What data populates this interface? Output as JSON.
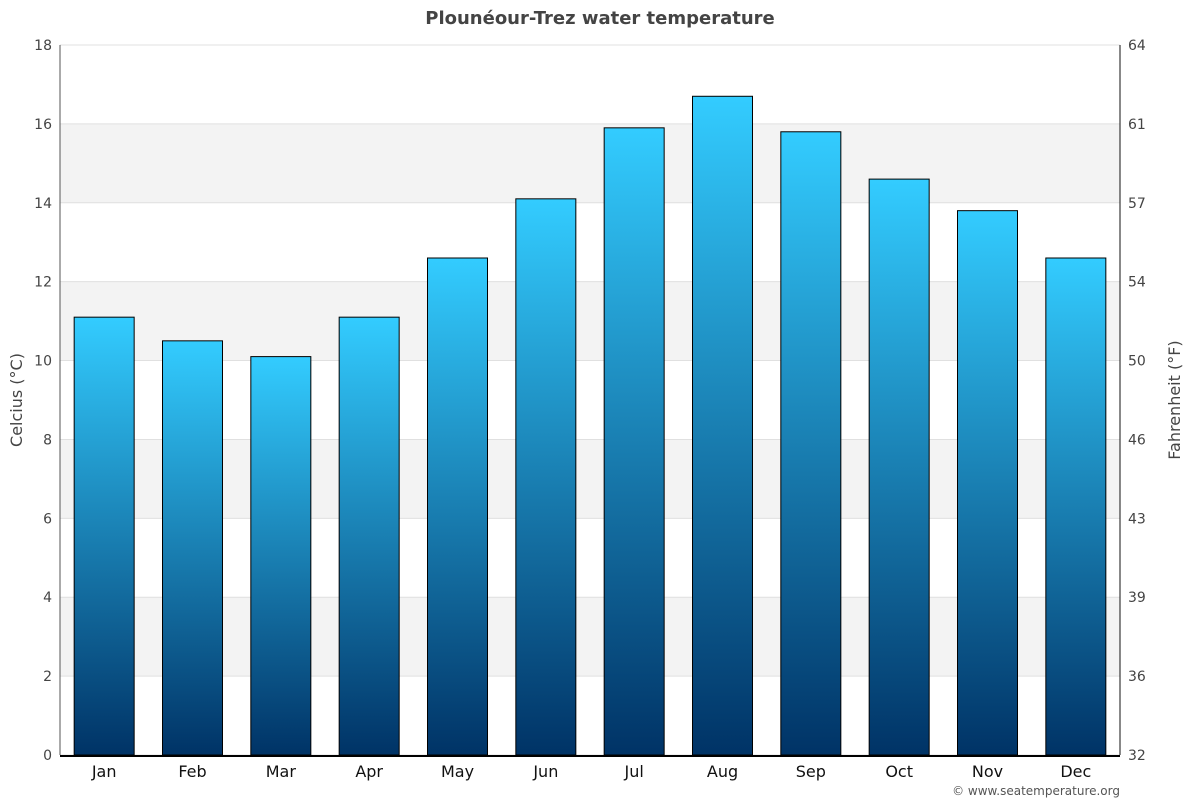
{
  "chart_data": {
    "type": "bar",
    "title": "Plounéour-Trez water temperature",
    "categories": [
      "Jan",
      "Feb",
      "Mar",
      "Apr",
      "May",
      "Jun",
      "Jul",
      "Aug",
      "Sep",
      "Oct",
      "Nov",
      "Dec"
    ],
    "values": [
      11.1,
      10.5,
      10.1,
      11.1,
      12.6,
      14.1,
      15.9,
      16.7,
      15.8,
      14.6,
      13.8,
      12.6
    ],
    "ylabel": "Celcius (°C)",
    "y2label": "Fahrenheit (°F)",
    "ylim": [
      0,
      18
    ],
    "yticks": [
      "0",
      "2",
      "4",
      "6",
      "8",
      "10",
      "12",
      "14",
      "16",
      "18"
    ],
    "y2ticks": [
      "32",
      "36",
      "39",
      "43",
      "46",
      "50",
      "54",
      "57",
      "61",
      "64"
    ],
    "grid": true,
    "bar_color_top": "#33ccff",
    "bar_color_bottom": "#003366"
  },
  "credit": "© www.seatemperature.org"
}
